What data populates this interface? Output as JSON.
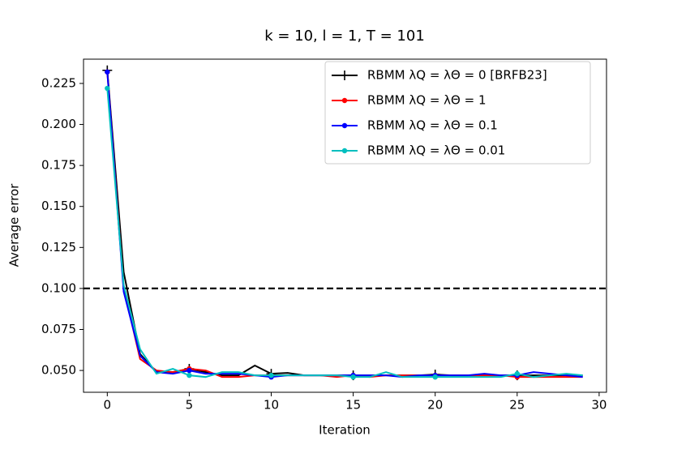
{
  "chart_data": {
    "type": "line",
    "title": "k = 10, l = 1, T = 101",
    "x_label": "Iteration",
    "y_label": "Average error",
    "x": [
      0,
      1,
      2,
      3,
      4,
      5,
      6,
      7,
      8,
      9,
      10,
      11,
      12,
      13,
      14,
      15,
      16,
      17,
      18,
      19,
      20,
      21,
      22,
      23,
      24,
      25,
      26,
      27,
      28,
      29
    ],
    "series": [
      {
        "name": "RBMM λQ = λΘ = 0 [BRFB23]",
        "color": "#000000",
        "marker": "plus",
        "values": [
          0.233,
          0.11,
          0.06,
          0.049,
          0.049,
          0.051,
          0.049,
          0.047,
          0.047,
          0.053,
          0.048,
          0.0485,
          0.047,
          0.047,
          0.047,
          0.047,
          0.047,
          0.047,
          0.047,
          0.047,
          0.0475,
          0.047,
          0.047,
          0.047,
          0.047,
          0.047,
          0.047,
          0.047,
          0.047,
          0.047
        ]
      },
      {
        "name": "RBMM λQ = λΘ = 1",
        "color": "#ff0000",
        "marker": "dot",
        "values": [
          0.232,
          0.1,
          0.057,
          0.05,
          0.049,
          0.051,
          0.05,
          0.046,
          0.046,
          0.047,
          0.047,
          0.047,
          0.047,
          0.047,
          0.046,
          0.047,
          0.046,
          0.047,
          0.047,
          0.047,
          0.047,
          0.047,
          0.047,
          0.047,
          0.047,
          0.046,
          0.046,
          0.046,
          0.046,
          0.046
        ]
      },
      {
        "name": "RBMM λQ = λΘ = 0.1",
        "color": "#0000ff",
        "marker": "dot",
        "values": [
          0.232,
          0.098,
          0.059,
          0.049,
          0.048,
          0.05,
          0.048,
          0.048,
          0.048,
          0.047,
          0.046,
          0.047,
          0.047,
          0.047,
          0.047,
          0.047,
          0.047,
          0.047,
          0.046,
          0.047,
          0.047,
          0.047,
          0.047,
          0.048,
          0.047,
          0.047,
          0.049,
          0.048,
          0.047,
          0.046
        ]
      },
      {
        "name": "RBMM λQ = λΘ = 0.01",
        "color": "#00bfbf",
        "marker": "dot",
        "values": [
          0.222,
          0.102,
          0.063,
          0.048,
          0.051,
          0.047,
          0.046,
          0.049,
          0.049,
          0.047,
          0.047,
          0.047,
          0.047,
          0.047,
          0.047,
          0.046,
          0.046,
          0.049,
          0.046,
          0.046,
          0.046,
          0.046,
          0.046,
          0.046,
          0.046,
          0.048,
          0.046,
          0.047,
          0.048,
          0.047
        ]
      }
    ],
    "markevery": 5,
    "threshold": 0.1,
    "xlim": [
      -1.45,
      30.45
    ],
    "ylim": [
      0.0367,
      0.2398
    ],
    "xticks": [
      0,
      5,
      10,
      15,
      20,
      25,
      30
    ],
    "yticks": [
      {
        "value": 0.05,
        "label": "0.050"
      },
      0.075,
      {
        "value": 0.1,
        "label": "0.100"
      },
      0.125,
      {
        "value": 0.15,
        "label": "0.150"
      },
      0.175,
      {
        "value": 0.2,
        "label": "0.200"
      },
      0.225
    ],
    "legend": "upper right",
    "grid": false
  }
}
